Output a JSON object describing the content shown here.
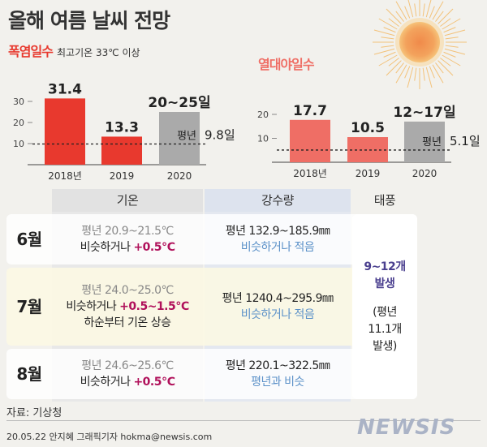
{
  "title": "올해 여름 날씨 전망",
  "colors": {
    "red": "#e8392e",
    "pink": "#ef6e65",
    "gray": "#aaaaaa",
    "blue": "#5a90c8",
    "magenta": "#b0105a",
    "purple": "#4a3f8f"
  },
  "heatwave": {
    "title": "폭염일수",
    "subtitle": "최고기온 33℃ 이상"
  },
  "tropical": {
    "title": "열대야일수"
  },
  "chart_data": [
    {
      "type": "bar",
      "title": "폭염일수",
      "subtitle": "최고기온 33℃ 이상",
      "categories": [
        "2018년",
        "2019",
        "2020"
      ],
      "values": [
        31.4,
        13.3,
        [
          20,
          25
        ]
      ],
      "value_labels": [
        "31.4",
        "13.3",
        "20~25일"
      ],
      "bar_colors": [
        "#e8392e",
        "#e8392e",
        "#aaaaaa"
      ],
      "yticks": [
        10,
        20,
        30
      ],
      "ylim": [
        0,
        35
      ],
      "reference": {
        "label": "평년",
        "value": 9.8,
        "value_label": "9.8일"
      }
    },
    {
      "type": "bar",
      "title": "열대야일수",
      "categories": [
        "2018년",
        "2019",
        "2020"
      ],
      "values": [
        17.7,
        10.5,
        [
          12,
          17
        ]
      ],
      "value_labels": [
        "17.7",
        "10.5",
        "12~17일"
      ],
      "bar_colors": [
        "#ef6e65",
        "#ef6e65",
        "#aaaaaa"
      ],
      "yticks": [
        10,
        20
      ],
      "ylim": [
        0,
        25
      ],
      "reference": {
        "label": "평년",
        "value": 5.1,
        "value_label": "5.1일"
      }
    },
    {
      "type": "table",
      "headers": [
        "기온",
        "강수량",
        "태풍"
      ],
      "rows": [
        {
          "month": "6월",
          "temp": [
            "평년 20.9~21.5℃",
            "비슷하거나 +0.5℃"
          ],
          "rain": [
            "평년 132.9~185.9㎜",
            "비슷하거나 적음"
          ]
        },
        {
          "month": "7월",
          "temp": [
            "평년 24.0~25.0℃",
            "비슷하거나 +0.5~1.5℃",
            "하순부터 기온 상승"
          ],
          "rain": [
            "평년 1240.4~295.9㎜",
            "비슷하거나 적음"
          ]
        },
        {
          "month": "8월",
          "temp": [
            "평년 24.6~25.6℃",
            "비슷하거나 +0.5℃"
          ],
          "rain": [
            "평년 220.1~322.5㎜",
            "평년과 비슷"
          ]
        }
      ],
      "typhoon": [
        "9~12개",
        "발생",
        "(평년",
        "11.1개",
        "발생)"
      ]
    }
  ],
  "table_parts": {
    "r6": {
      "temp_a": "비슷하거나 ",
      "temp_b": "+0.5℃"
    },
    "r7": {
      "temp_a": "비슷하거나 ",
      "temp_b": "+0.5~1.5℃"
    },
    "r8": {
      "temp_a": "비슷하거나 ",
      "temp_b": "+0.5℃"
    }
  },
  "footer": {
    "source": "자료: 기상청",
    "credit": "20.05.22 안지혜 그래픽기자 hokma@newsis.com",
    "logo": "NEWSIS"
  }
}
